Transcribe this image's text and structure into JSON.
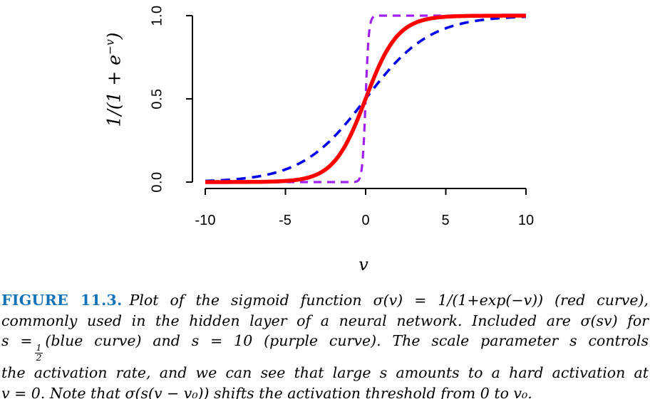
{
  "chart_data": {
    "type": "line",
    "title": "",
    "xlabel": "v",
    "ylabel": "1/(1 + e−v)",
    "ylabel_parts": {
      "base_left": "1/(1 + e",
      "superscript": "−v",
      "base_right": ")"
    },
    "xlim": [
      -10,
      10
    ],
    "ylim": [
      0,
      1
    ],
    "x_tick_labels": [
      "-10",
      "-5",
      "0",
      "5",
      "10"
    ],
    "y_tick_labels": [
      "0.0",
      "0.5",
      "1.0"
    ],
    "grid": false,
    "axis_color": "#000000",
    "function": "sigma(s*v) = 1/(1 + exp(-s*v)), sampled for v in [-10, 10]",
    "series": [
      {
        "id": "blue",
        "name": "σ(sv), s = 1/2 (blue curve)",
        "s": 0.5,
        "color": "#0000EE",
        "style": "dashed",
        "dash": "13 9",
        "width": 3.6
      },
      {
        "id": "purple",
        "name": "σ(sv), s = 10 (purple curve)",
        "s": 10,
        "color": "#A020F0",
        "style": "dashed",
        "dash": "11 8",
        "width": 3.2
      },
      {
        "id": "red",
        "name": "σ(v) (red curve)",
        "s": 1,
        "color": "#FF0000",
        "style": "solid",
        "dash": "",
        "width": 5.5
      }
    ],
    "key_points": [
      {
        "v": 0,
        "y": 0.5
      },
      {
        "v": -10,
        "y": 0
      },
      {
        "v": 10,
        "y": 1
      }
    ]
  },
  "caption": {
    "figure_label": "FIGURE 11.3.",
    "figure_label_color": "#1273B8",
    "line1": "Plot of the sigmoid function σ(v) = 1/(1+exp(−v)) (red curve),",
    "line2": "commonly used in the hidden layer of a neural network. Included are σ(sv) for",
    "line3_pre": "s =",
    "frac_num": "1",
    "frac_den": "2",
    "line3_post": "(blue curve) and s = 10 (purple curve). The scale parameter s controls",
    "line4": "the activation rate, and we can see that large s amounts to a hard activation at",
    "line5": "v = 0. Note that σ(s(v − v₀)) shifts the activation threshold from 0 to v₀."
  }
}
